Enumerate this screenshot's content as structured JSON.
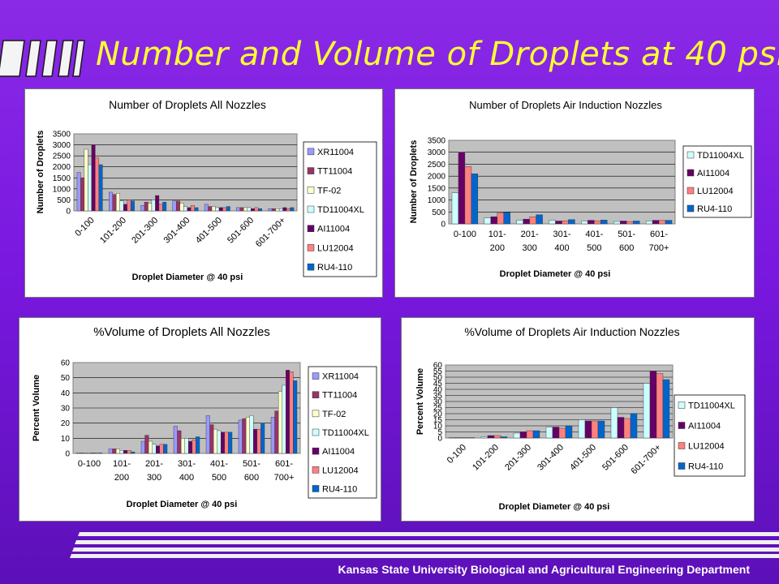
{
  "slide": {
    "title": "Number and Volume of Droplets at 40 psi",
    "footer": "Kansas State University Biological and Agricultural Engineering Department"
  },
  "colors": {
    "background": "#7a18e0",
    "title": "#ffff33",
    "plot_area": "#c0c0c0",
    "XR11004": "#9999ff",
    "TT11004": "#993366",
    "TF-02": "#ffffcc",
    "TD11004XL": "#ccffff",
    "AI11004": "#660066",
    "LU12004": "#ff8080",
    "RU4-110": "#0066cc"
  },
  "chart_data": [
    {
      "type": "bar",
      "title": "Number of Droplets All Nozzles",
      "xlabel": "Droplet Diameter @ 40 psi",
      "ylabel": "Number of Droplets",
      "ylim": [
        0,
        3500
      ],
      "yticks": [
        "0",
        "500",
        "1000",
        "1500",
        "2000",
        "2500",
        "3000",
        "3500"
      ],
      "categories": [
        "0-100",
        "101-200",
        "201-300",
        "301-400",
        "401-500",
        "501-600",
        "601-700+"
      ],
      "legend_position": "right",
      "grid": true,
      "series": [
        {
          "name": "XR11004",
          "values": [
            1750,
            850,
            250,
            450,
            300,
            150,
            100
          ]
        },
        {
          "name": "TT11004",
          "values": [
            1500,
            750,
            400,
            450,
            200,
            150,
            100
          ]
        },
        {
          "name": "TF-02",
          "values": [
            2800,
            800,
            350,
            350,
            200,
            150,
            100
          ]
        },
        {
          "name": "TD11004XL",
          "values": [
            2100,
            450,
            500,
            200,
            150,
            150,
            100
          ]
        },
        {
          "name": "AI11004",
          "values": [
            3000,
            300,
            700,
            150,
            150,
            100,
            150
          ]
        },
        {
          "name": "LU12004",
          "values": [
            2400,
            500,
            300,
            250,
            150,
            150,
            100
          ]
        },
        {
          "name": "RU4-110",
          "values": [
            2100,
            450,
            400,
            150,
            200,
            100,
            150
          ]
        }
      ]
    },
    {
      "type": "bar",
      "title": "Number of Droplets Air Induction Nozzles",
      "xlabel": "Droplet Diameter @ 40 psi",
      "ylabel": "Number of Droplets",
      "ylim": [
        0,
        3500
      ],
      "yticks": [
        "0",
        "500",
        "1000",
        "1500",
        "2000",
        "2500",
        "3000",
        "3500"
      ],
      "categories": [
        "0-100",
        "101-200",
        "201-300",
        "301-400",
        "401-500",
        "501-600",
        "601-700+"
      ],
      "category_lines": [
        [
          "0-100"
        ],
        [
          "101-",
          "200"
        ],
        [
          "201-",
          "300"
        ],
        [
          "301-",
          "400"
        ],
        [
          "401-",
          "500"
        ],
        [
          "501-",
          "600"
        ],
        [
          "601-",
          "700+"
        ]
      ],
      "legend_position": "right",
      "grid": true,
      "series": [
        {
          "name": "TD11004XL",
          "values": [
            1300,
            250,
            150,
            150,
            120,
            100,
            120
          ]
        },
        {
          "name": "AI11004",
          "values": [
            3000,
            300,
            200,
            120,
            150,
            120,
            150
          ]
        },
        {
          "name": "LU12004",
          "values": [
            2400,
            450,
            300,
            130,
            130,
            100,
            150
          ]
        },
        {
          "name": "RU4-110",
          "values": [
            2100,
            480,
            380,
            180,
            160,
            120,
            150
          ]
        }
      ]
    },
    {
      "type": "bar",
      "title": "%Volume of Droplets All Nozzles",
      "xlabel": "Droplet Diameter @ 40 psi",
      "ylabel": "Percent Volume",
      "ylim": [
        0,
        60
      ],
      "yticks": [
        "0",
        "10",
        "20",
        "30",
        "40",
        "50",
        "60"
      ],
      "categories": [
        "0-100",
        "101-200",
        "201-300",
        "301-400",
        "401-500",
        "501-600",
        "601-700+"
      ],
      "category_lines": [
        [
          "0-100"
        ],
        [
          "101-",
          "200"
        ],
        [
          "201-",
          "300"
        ],
        [
          "301-",
          "400"
        ],
        [
          "401-",
          "500"
        ],
        [
          "501-",
          "600"
        ],
        [
          "601-",
          "700+"
        ]
      ],
      "legend_position": "right",
      "grid": true,
      "series": [
        {
          "name": "XR11004",
          "values": [
            0.3,
            3,
            8,
            18,
            25,
            22,
            24
          ]
        },
        {
          "name": "TT11004",
          "values": [
            0.3,
            3,
            12,
            15,
            19,
            23,
            28
          ]
        },
        {
          "name": "TF-02",
          "values": [
            0.3,
            3,
            8,
            10,
            16,
            24,
            41
          ]
        },
        {
          "name": "TD11004XL",
          "values": [
            0.3,
            2,
            6,
            10,
            15,
            25,
            45
          ]
        },
        {
          "name": "AI11004",
          "values": [
            0.3,
            2,
            5,
            8,
            14,
            16,
            55
          ]
        },
        {
          "name": "LU12004",
          "values": [
            0.3,
            2,
            6,
            9,
            14,
            16,
            54
          ]
        },
        {
          "name": "RU4-110",
          "values": [
            0.3,
            1,
            6,
            11,
            14,
            20,
            48
          ]
        }
      ]
    },
    {
      "type": "bar",
      "title": "%Volume of Droplets Air Induction Nozzles",
      "xlabel": "Droplet Diameter @ 40 psi",
      "ylabel": "Percent Volume",
      "ylim": [
        0,
        60
      ],
      "yticks": [
        "0",
        "5",
        "10",
        "15",
        "20",
        "25",
        "30",
        "35",
        "40",
        "45",
        "50",
        "55",
        "60"
      ],
      "categories": [
        "0-100",
        "101-200",
        "201-300",
        "301-400",
        "401-500",
        "501-600",
        "601-700+"
      ],
      "legend_position": "right",
      "grid": true,
      "series": [
        {
          "name": "TD11004XL",
          "values": [
            0.3,
            1,
            4,
            9,
            15,
            25,
            45
          ]
        },
        {
          "name": "AI11004",
          "values": [
            0.3,
            2,
            5,
            9,
            14,
            17,
            55
          ]
        },
        {
          "name": "LU12004",
          "values": [
            0.3,
            2,
            6,
            8,
            14,
            16,
            53
          ]
        },
        {
          "name": "RU4-110",
          "values": [
            0.3,
            1,
            6,
            10,
            14,
            20,
            48
          ]
        }
      ]
    }
  ]
}
